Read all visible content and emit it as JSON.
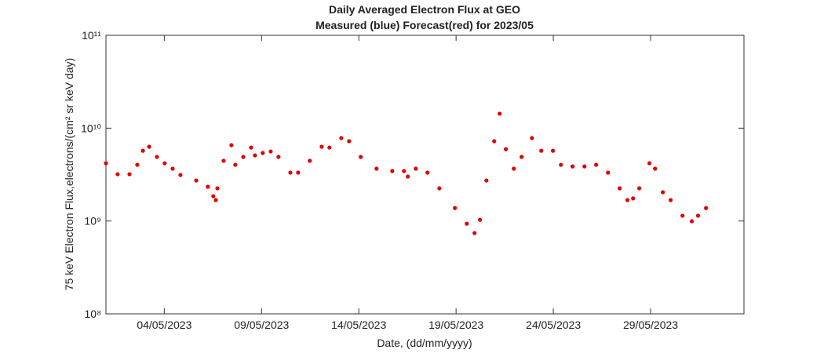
{
  "chart_data": {
    "type": "scatter",
    "title": "Daily Averaged Electron Flux at GEO",
    "subtitle": "Measured (blue) Forecast(red) for 2023/05",
    "x_label": "Date, (dd/mm/yyyy)",
    "y_label": "75 keV Electron Flux,electrons/(cm² sr keV day)",
    "y_log": true,
    "xlim": [
      1,
      33.8
    ],
    "ylim": [
      100000000,
      100000000000
    ],
    "xticks": [
      {
        "value": 4,
        "label": "04/05/2023"
      },
      {
        "value": 9,
        "label": "09/05/2023"
      },
      {
        "value": 14,
        "label": "14/05/2023"
      },
      {
        "value": 19,
        "label": "19/05/2023"
      },
      {
        "value": 24,
        "label": "24/05/2023"
      },
      {
        "value": 29,
        "label": "29/05/2023"
      }
    ],
    "yticks": [
      {
        "value": 100000000,
        "label": "10⁸"
      },
      {
        "value": 1000000000,
        "label": "10⁹"
      },
      {
        "value": 10000000000,
        "label": "10¹⁰"
      },
      {
        "value": 100000000000,
        "label": "10¹¹"
      }
    ],
    "series": [
      {
        "color": "#e00000",
        "x": [
          1.0,
          1.6,
          2.21,
          2.61,
          2.9,
          3.22,
          3.62,
          4.02,
          4.43,
          4.83,
          5.64,
          6.24,
          6.52,
          6.65,
          6.73,
          7.05,
          7.45,
          7.65,
          8.06,
          8.46,
          8.66,
          9.06,
          9.47,
          9.87,
          10.48,
          10.88,
          11.48,
          12.09,
          12.49,
          13.1,
          13.5,
          14.1,
          14.91,
          15.72,
          16.32,
          16.52,
          16.93,
          17.53,
          18.14,
          18.94,
          19.55,
          19.95,
          20.23,
          20.56,
          20.96,
          21.24,
          21.56,
          21.97,
          22.37,
          22.9,
          23.38,
          23.98,
          24.39,
          24.99,
          25.6,
          26.2,
          26.81,
          27.41,
          27.81,
          28.1,
          28.42,
          28.94,
          29.23,
          29.63,
          30.03,
          30.64,
          31.12,
          31.44,
          31.85
        ],
        "values": [
          4190000000,
          3190000000,
          3190000000,
          4030000000,
          5710000000,
          6310000000,
          4900000000,
          4190000000,
          3660000000,
          3130000000,
          2730000000,
          2340000000,
          1850000000,
          1680000000,
          2250000000,
          4450000000,
          6560000000,
          4030000000,
          4900000000,
          6180000000,
          5090000000,
          5400000000,
          5610000000,
          4900000000,
          3320000000,
          3320000000,
          4450000000,
          6310000000,
          6180000000,
          7820000000,
          7230000000,
          4900000000,
          3660000000,
          3450000000,
          3450000000,
          3010000000,
          3660000000,
          3320000000,
          2250000000,
          1380000000,
          935000000,
          741000000,
          1030000000,
          2730000000,
          7230000000,
          14300000000,
          5940000000,
          3660000000,
          4900000000,
          7820000000,
          5710000000,
          5710000000,
          4030000000,
          3870000000,
          3870000000,
          4030000000,
          3320000000,
          2250000000,
          1680000000,
          1750000000,
          2250000000,
          4190000000,
          3660000000,
          2040000000,
          1680000000,
          1140000000,
          993000000,
          1140000000,
          1380000000
        ]
      }
    ]
  }
}
